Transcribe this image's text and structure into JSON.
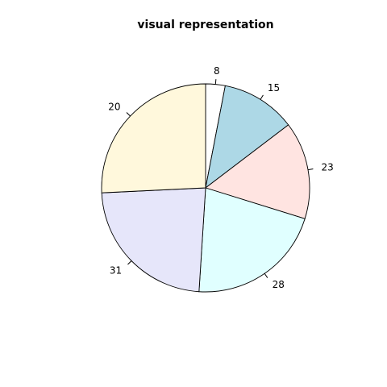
{
  "chart_data": {
    "type": "pie",
    "title": "visual representation",
    "slices": [
      {
        "label": "8",
        "value": 3.03,
        "color": "#ffffff"
      },
      {
        "label": "15",
        "value": 11.62,
        "color": "#add8e6"
      },
      {
        "label": "23",
        "value": 15.15,
        "color": "#ffe4e1"
      },
      {
        "label": "28",
        "value": 21.21,
        "color": "#e0ffff"
      },
      {
        "label": "31",
        "value": 23.23,
        "color": "#e6e6fa"
      },
      {
        "label": "20",
        "value": 25.76,
        "color": "#fff8dc"
      }
    ],
    "start": "12 o'clock",
    "direction": "clockwise",
    "legend": "none"
  }
}
